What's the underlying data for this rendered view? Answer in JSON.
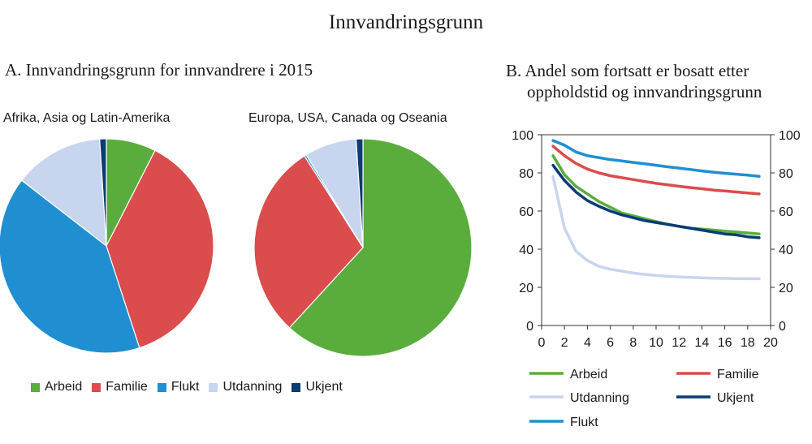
{
  "title": "Innvandringsgrunn",
  "panels": {
    "a_title": "A.   Innvandringsgrunn for innvandrere i 2015",
    "b_title_line1": "B.  Andel som fortsatt er bosatt etter",
    "b_title_line2": "oppholdstid og innvandringsgrunn"
  },
  "colors": {
    "Arbeid": "#5aad3c",
    "Familie": "#db4c4c",
    "Flukt": "#1f8fd1",
    "Utdanning": "#c8d5ee",
    "Ukjent": "#0b3c73"
  },
  "chart_data": [
    {
      "type": "pie",
      "title": "Afrika, Asia og Latin-Amerika",
      "labels": [
        "Arbeid",
        "Familie",
        "Flukt",
        "Utdanning",
        "Ukjent"
      ],
      "values": [
        7.5,
        37.5,
        40.5,
        13.5,
        1.0
      ]
    },
    {
      "type": "pie",
      "title": "Europa, USA, Canada og Oseania",
      "labels": [
        "Arbeid",
        "Familie",
        "Flukt",
        "Utdanning",
        "Ukjent"
      ],
      "values": [
        61.5,
        29.0,
        0.3,
        7.7,
        1.0
      ]
    },
    {
      "type": "line",
      "title": "Andel som fortsatt er bosatt etter oppholdstid og innvandringsgrunn",
      "xlim": [
        0,
        20
      ],
      "ylim": [
        0,
        100
      ],
      "xticks": [
        0,
        2,
        4,
        6,
        8,
        10,
        12,
        14,
        16,
        18,
        20
      ],
      "yticks": [
        0,
        20,
        40,
        60,
        80,
        100
      ],
      "x": [
        1,
        2,
        3,
        4,
        5,
        6,
        7,
        8,
        9,
        10,
        11,
        12,
        13,
        14,
        15,
        16,
        17,
        18,
        19
      ],
      "series": [
        {
          "name": "Arbeid",
          "values": [
            89,
            79,
            73,
            69,
            65,
            62,
            59,
            57.5,
            56,
            54.5,
            53,
            52,
            51,
            50.5,
            50,
            49.5,
            49,
            48.5,
            48
          ]
        },
        {
          "name": "Familie",
          "values": [
            94,
            89,
            85,
            82,
            80,
            78.5,
            77.5,
            76.5,
            75.5,
            74.5,
            73.8,
            73,
            72.3,
            71.7,
            71,
            70.5,
            70,
            69.5,
            69
          ]
        },
        {
          "name": "Utdanning",
          "values": [
            78,
            51,
            39,
            34,
            31,
            29.5,
            28.5,
            27.5,
            26.8,
            26.2,
            25.8,
            25.5,
            25.2,
            25,
            24.8,
            24.7,
            24.6,
            24.5,
            24.5
          ]
        },
        {
          "name": "Ukjent",
          "values": [
            84,
            76,
            70,
            65.5,
            62.5,
            60,
            58,
            56.5,
            55,
            54,
            53,
            52,
            51,
            50,
            49,
            48,
            47.5,
            46.5,
            46
          ]
        },
        {
          "name": "Flukt",
          "values": [
            97,
            94.5,
            91,
            89,
            88,
            87,
            86.3,
            85.5,
            84.8,
            84,
            83.2,
            82.5,
            81.8,
            81,
            80.4,
            79.8,
            79.3,
            78.8,
            78.2
          ]
        }
      ],
      "legend": [
        "Arbeid",
        "Familie",
        "Utdanning",
        "Ukjent",
        "Flukt"
      ]
    }
  ]
}
